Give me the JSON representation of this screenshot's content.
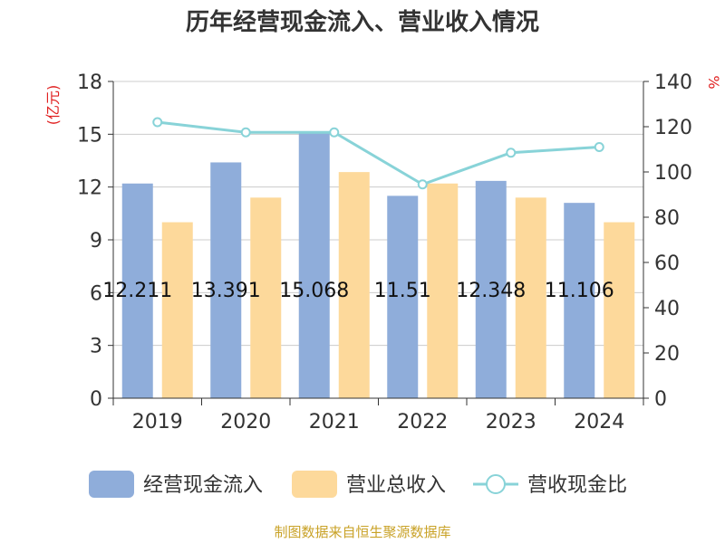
{
  "chart_data": {
    "type": "bar",
    "title": "历年经营现金流入、营业收入情况",
    "categories": [
      "2019",
      "2020",
      "2021",
      "2022",
      "2023",
      "2024"
    ],
    "series": [
      {
        "name": "经营现金流入",
        "type": "bar",
        "axis": "left",
        "color": "#8fadda",
        "values": [
          12.2,
          13.4,
          15.07,
          11.5,
          12.35,
          11.1
        ],
        "data_labels": [
          "12.211",
          "13.391",
          "15.068",
          "11.51",
          "12.348",
          "11.106"
        ]
      },
      {
        "name": "营业总收入",
        "type": "bar",
        "axis": "left",
        "color": "#fdd99b",
        "values": [
          10.0,
          11.4,
          12.85,
          12.2,
          11.4,
          10.0
        ]
      },
      {
        "name": "营收现金比",
        "type": "line",
        "axis": "right",
        "color": "#88d3d8",
        "values": [
          122,
          117.5,
          117.5,
          94.5,
          108.5,
          111
        ]
      }
    ],
    "y_left": {
      "unit": "(亿元)",
      "ylim": [
        0,
        18
      ],
      "ticks": [
        "0",
        "3",
        "6",
        "9",
        "12",
        "15",
        "18"
      ]
    },
    "y_right": {
      "unit": "%",
      "ylim": [
        0,
        140
      ],
      "ticks": [
        "0",
        "20",
        "40",
        "60",
        "80",
        "100",
        "120",
        "140"
      ]
    },
    "grid": true,
    "legend_position": "bottom",
    "source": "制图数据来自恒生聚源数据库"
  }
}
